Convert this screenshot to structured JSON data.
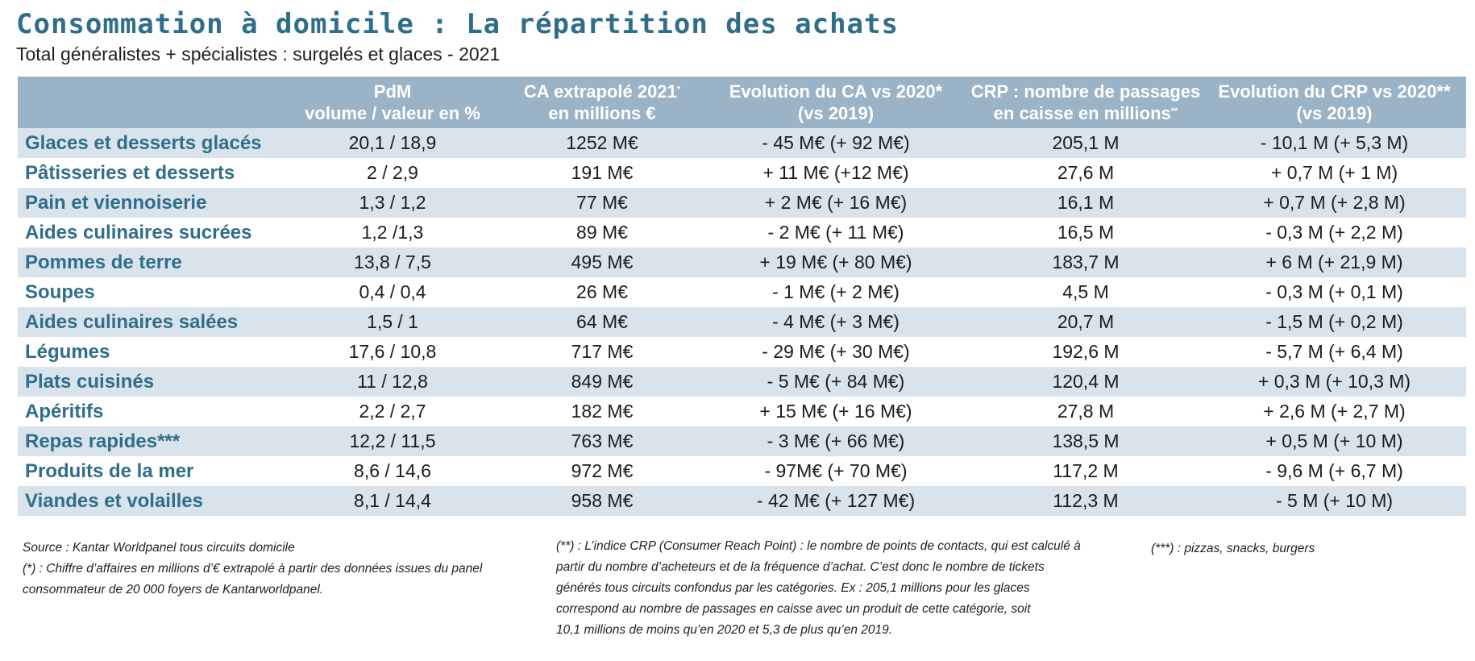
{
  "title": "Consommation à domicile : La répartition des achats",
  "subtitle": "Total généralistes + spécialistes : surgelés et glaces - 2021",
  "colors": {
    "title": "#2f6e8a",
    "header_bg": "#9bb3c7",
    "row_alt_bg": "#d9e3ec",
    "category_text": "#2f6e8a"
  },
  "table": {
    "headers": [
      {
        "line1": "",
        "line2": "",
        "sup": ""
      },
      {
        "line1": "PdM",
        "line2": "volume / valeur en %",
        "sup": ""
      },
      {
        "line1": "CA extrapolé 2021",
        "line2": "en millions €",
        "sup": "*"
      },
      {
        "line1": "Evolution du CA vs 2020*",
        "line2": "(vs 2019)",
        "sup": ""
      },
      {
        "line1": "CRP : nombre de passages",
        "line2": "en caisse en millions",
        "sup": "**"
      },
      {
        "line1": "Evolution du CRP vs 2020**",
        "line2": "(vs 2019)",
        "sup": ""
      }
    ],
    "rows": [
      [
        "Glaces et desserts glacés",
        "20,1 / 18,9",
        "1252 M€",
        "- 45 M€ (+ 92 M€)",
        "205,1 M",
        "- 10,1 M (+ 5,3 M)"
      ],
      [
        "Pâtisseries et desserts",
        "2 / 2,9",
        "191 M€",
        "+ 11 M€ (+12 M€)",
        "27,6 M",
        "+ 0,7 M (+ 1 M)"
      ],
      [
        "Pain et viennoiserie",
        "1,3 / 1,2",
        "77 M€",
        "+ 2 M€ (+ 16 M€)",
        "16,1 M",
        "+ 0,7 M (+ 2,8 M)"
      ],
      [
        "Aides culinaires sucrées",
        "1,2 /1,3",
        "89 M€",
        "- 2 M€ (+ 11 M€)",
        "16,5 M",
        "- 0,3 M (+ 2,2 M)"
      ],
      [
        "Pommes de terre",
        "13,8 / 7,5",
        "495 M€",
        "+ 19 M€ (+ 80 M€)",
        "183,7 M",
        "+ 6 M (+ 21,9 M)"
      ],
      [
        "Soupes",
        "0,4 / 0,4",
        "26 M€",
        "- 1 M€ (+ 2 M€)",
        "4,5 M",
        "- 0,3 M (+ 0,1 M)"
      ],
      [
        "Aides culinaires salées",
        "1,5 / 1",
        "64 M€",
        "- 4 M€ (+ 3 M€)",
        "20,7 M",
        "- 1,5 M (+ 0,2 M)"
      ],
      [
        "Légumes",
        "17,6 / 10,8",
        "717 M€",
        "- 29 M€ (+ 30 M€)",
        "192,6 M",
        "- 5,7 M (+ 6,4 M)"
      ],
      [
        "Plats cuisinés",
        "11 / 12,8",
        "849 M€",
        "- 5 M€ (+ 84 M€)",
        "120,4 M",
        "+ 0,3 M (+ 10,3 M)"
      ],
      [
        "Apéritifs",
        "2,2 / 2,7",
        "182 M€",
        "+ 15 M€ (+ 16 M€)",
        "27,8 M",
        "+ 2,6 M (+ 2,7 M)"
      ],
      [
        "Repas rapides***",
        "12,2 / 11,5",
        "763 M€",
        "- 3 M€ (+ 66 M€)",
        "138,5 M",
        "+ 0,5 M (+ 10 M)"
      ],
      [
        "Produits de la mer",
        "8,6 / 14,6",
        "972 M€",
        "- 97M€ (+ 70 M€)",
        "117,2 M",
        "- 9,6 M (+ 6,7 M)"
      ],
      [
        "Viandes et volailles",
        "8,1 / 14,4",
        "958 M€",
        "- 42 M€ (+ 127 M€)",
        "112,3 M",
        "- 5 M (+ 10 M)"
      ]
    ]
  },
  "notes": {
    "left": [
      "Source : Kantar Worldpanel tous circuits domicile",
      "(*) : Chiffre d’affaires en millions d’€ extrapolé à partir des données issues du panel",
      "consommateur  de 20 000 foyers de Kantarworldpanel."
    ],
    "middle": [
      "(**) : L’indice CRP (Consumer Reach Point) : le nombre de points de contacts, qui est calculé à",
      "partir du nombre d’acheteurs et de la fréquence d’achat. C’est donc le nombre de tickets",
      "générés tous circuits confondus par les catégories. Ex : 205,1 millions pour les glaces",
      " correspond au nombre de passages en caisse avec un produit de cette catégorie, soit",
      "10,1 millions de moins qu’en 2020 et 5,3 de plus qu’en 2019."
    ],
    "right": [
      "(***) : pizzas, snacks, burgers"
    ]
  }
}
